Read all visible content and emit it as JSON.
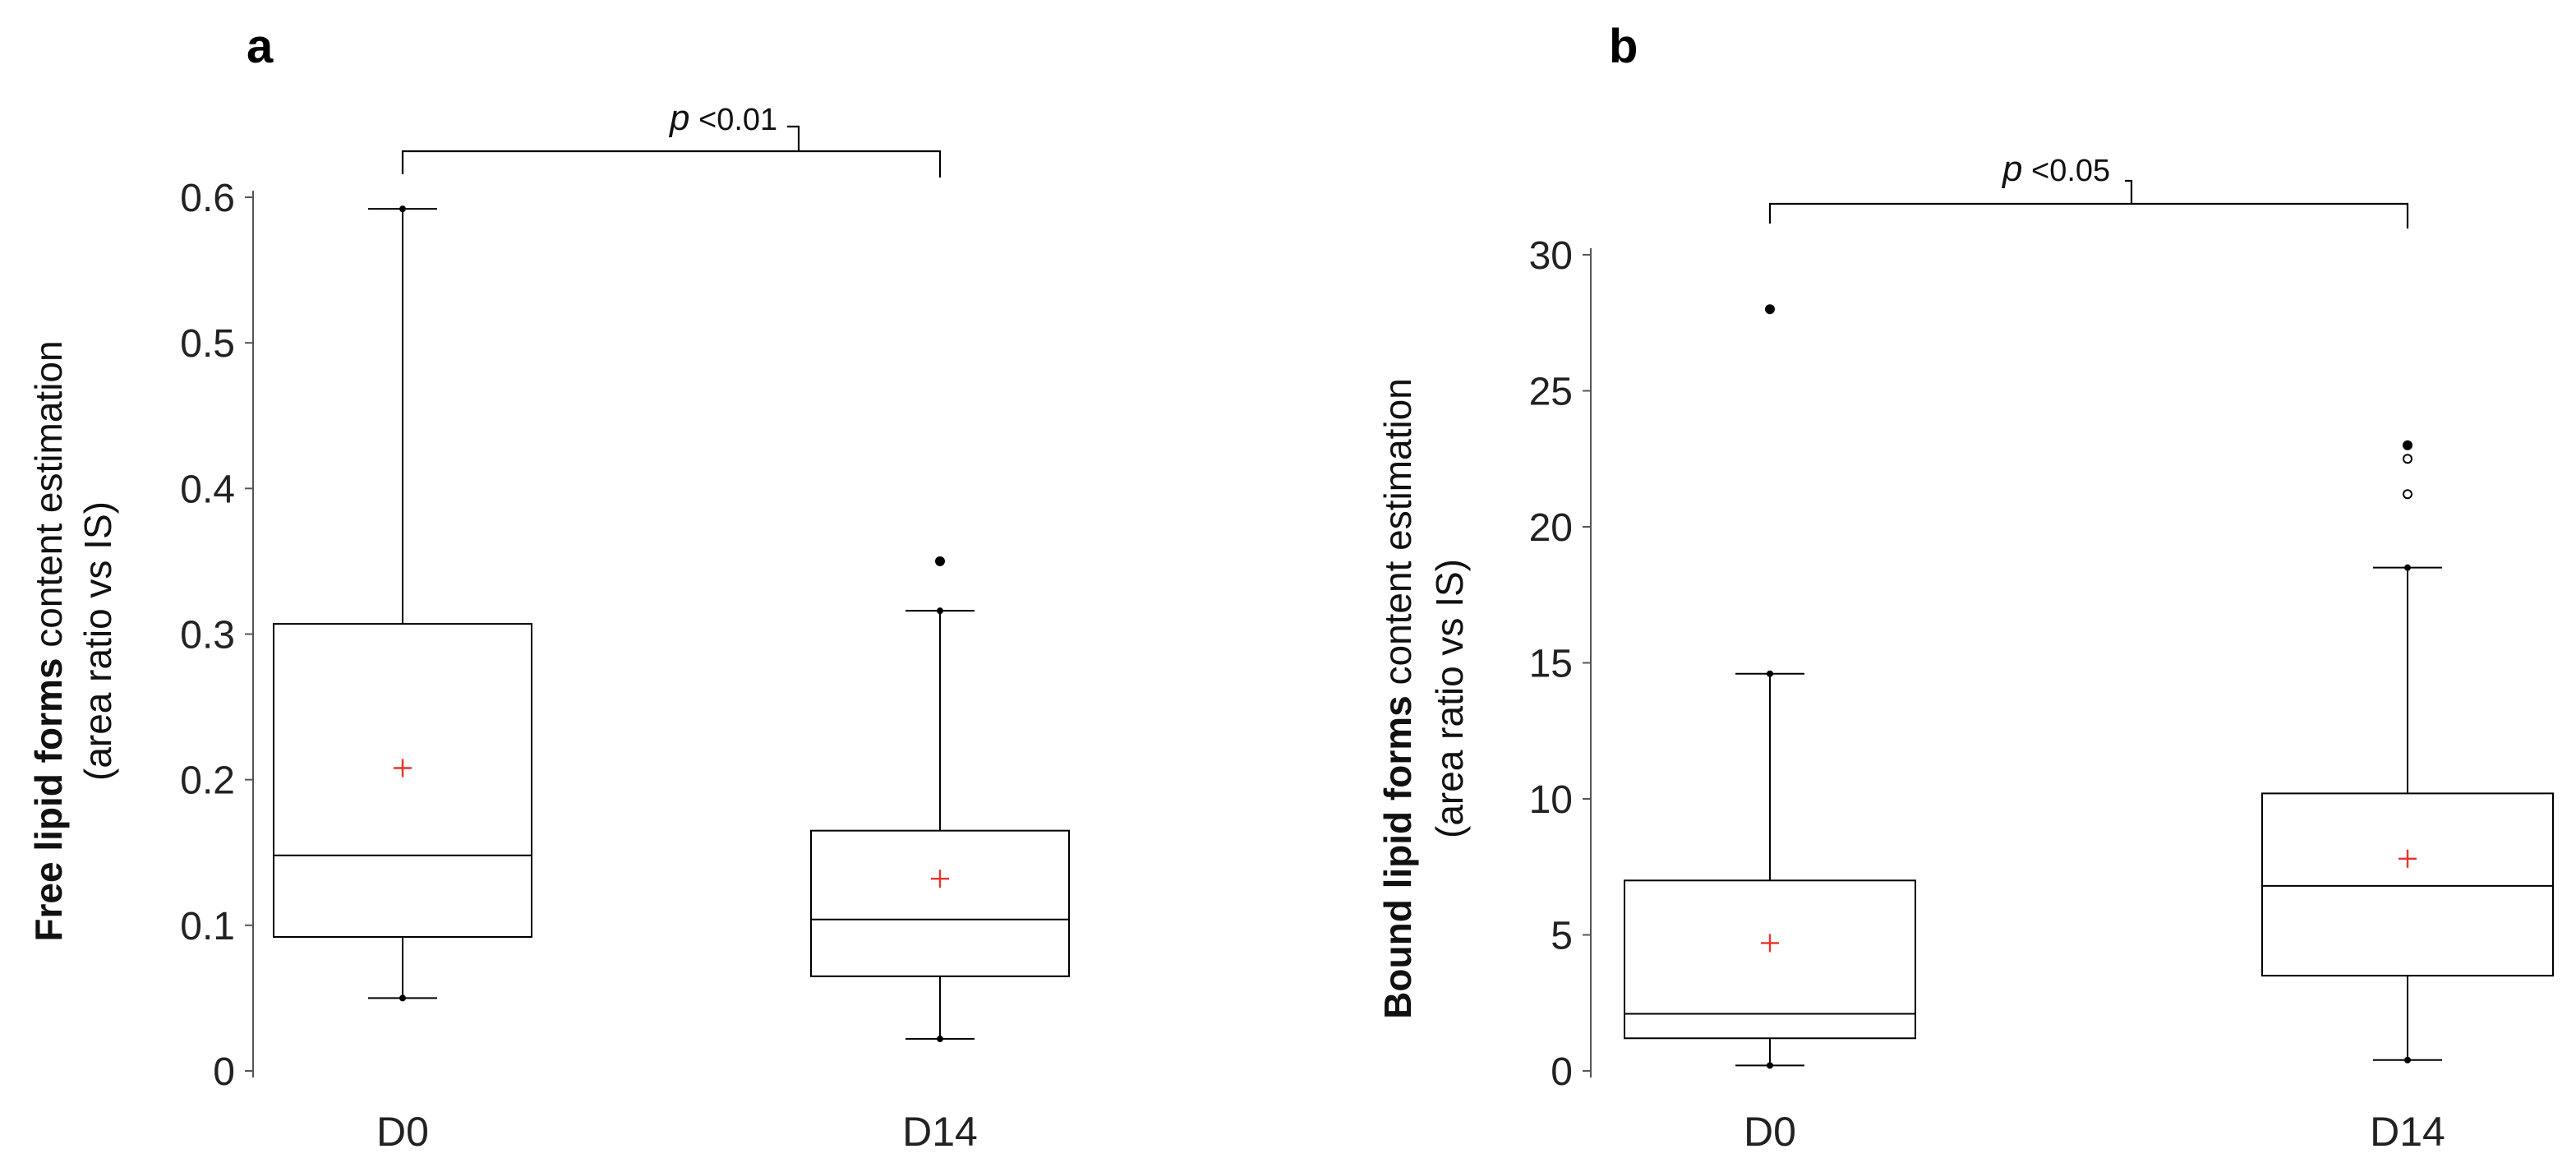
{
  "colors": {
    "mean_marker": "#e8322a",
    "line": "#000000",
    "text": "#222222"
  },
  "chart_data": [
    {
      "type": "box",
      "panel_label": "a",
      "ylabel_bold": "Free lipid forms",
      "ylabel_rest": " content estimation",
      "ylabel_line2": "(area ratio vs IS)",
      "ylim": [
        0,
        0.6
      ],
      "yticks": [
        0,
        0.1,
        0.2,
        0.3,
        0.4,
        0.5,
        0.6
      ],
      "ytick_labels": [
        "0",
        "0.1",
        "0.2",
        "0.3",
        "0.4",
        "0.5",
        "0.6"
      ],
      "categories": [
        "D0",
        "D14"
      ],
      "boxes": [
        {
          "category": "D0",
          "whisker_low": 0.05,
          "q1": 0.092,
          "median": 0.148,
          "q3": 0.307,
          "whisker_high": 0.592,
          "mean": 0.208,
          "outliers": []
        },
        {
          "category": "D14",
          "whisker_low": 0.022,
          "q1": 0.065,
          "median": 0.104,
          "q3": 0.165,
          "whisker_high": 0.316,
          "mean": 0.132,
          "outliers": [
            0.35
          ]
        }
      ],
      "significance": {
        "p_symbol": "p",
        "text": " <0.01",
        "between": [
          "D0",
          "D14"
        ]
      }
    },
    {
      "type": "box",
      "panel_label": "b",
      "ylabel_bold": "Bound lipid forms",
      "ylabel_rest": " content estimation",
      "ylabel_line2": "(area ratio vs IS)",
      "ylim": [
        0,
        30
      ],
      "yticks": [
        0,
        5,
        10,
        15,
        20,
        25,
        30
      ],
      "ytick_labels": [
        "0",
        "5",
        "10",
        "15",
        "20",
        "25",
        "30"
      ],
      "categories": [
        "D0",
        "D14"
      ],
      "boxes": [
        {
          "category": "D0",
          "whisker_low": 0.2,
          "q1": 1.2,
          "median": 2.1,
          "q3": 7.0,
          "whisker_high": 14.6,
          "mean": 4.7,
          "outliers": [
            28.0
          ]
        },
        {
          "category": "D14",
          "whisker_low": 0.4,
          "q1": 3.5,
          "median": 6.8,
          "q3": 10.2,
          "whisker_high": 18.5,
          "mean": 7.8,
          "outliers": [
            21.2,
            22.5,
            23.0
          ]
        }
      ],
      "significance": {
        "p_symbol": "p",
        "text": " <0.05",
        "between": [
          "D0",
          "D14"
        ]
      }
    }
  ]
}
